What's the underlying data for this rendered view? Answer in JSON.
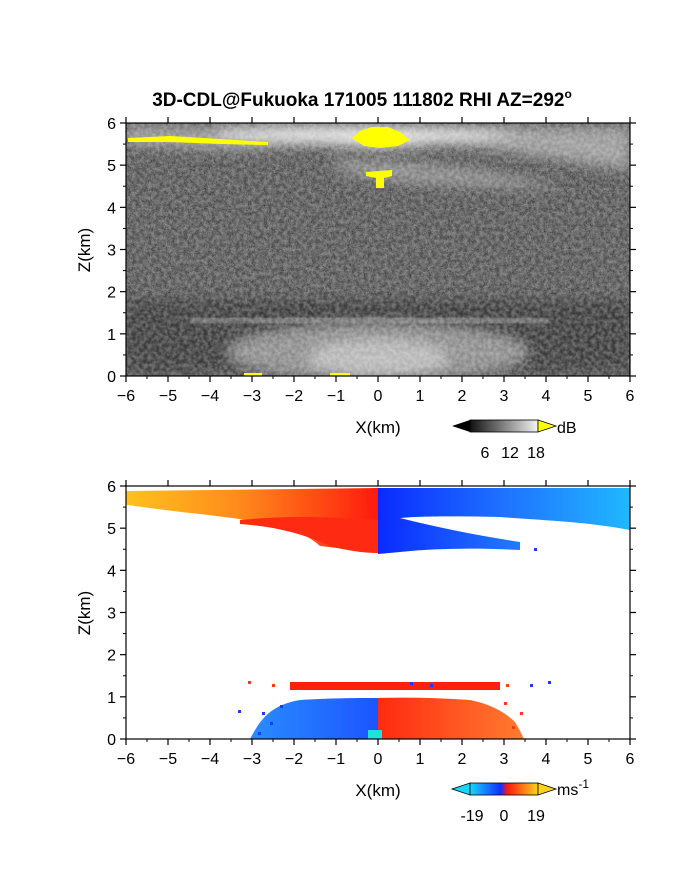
{
  "title_main": "3D-CDL@Fukuoka 171005 111802 RHI AZ=292",
  "title_sup": "o",
  "chart_data": [
    {
      "type": "heatmap",
      "quantity": "reflectivity",
      "xlabel": "X(km)",
      "ylabel": "Z(km)",
      "xlim": [
        -6,
        6
      ],
      "ylim": [
        0,
        6
      ],
      "xticks": [
        -6,
        -5,
        -4,
        -3,
        -2,
        -1,
        0,
        1,
        2,
        3,
        4,
        5,
        6
      ],
      "yticks": [
        0,
        1,
        2,
        3,
        4,
        5,
        6
      ],
      "colorbar": {
        "unit": "dB",
        "ticks": [
          6,
          12,
          18
        ],
        "palette": "grayscale with yellow overflow"
      },
      "features": [
        {
          "name": "cloud layer",
          "x": [
            -6,
            6
          ],
          "z": [
            4.5,
            6.0
          ],
          "dB": 12
        },
        {
          "name": "thin layer",
          "x": [
            -3,
            4
          ],
          "z": [
            1.25,
            1.35
          ],
          "dB": 8
        },
        {
          "name": "boundary layer",
          "x": [
            -3,
            4
          ],
          "z": [
            0,
            1.2
          ],
          "dB": 7
        },
        {
          "name": "strong echo (>18 dB)",
          "x": [
            -0.5,
            0.8
          ],
          "z": [
            5.5,
            5.9
          ],
          "dB": 19
        },
        {
          "name": "strong echo (>18 dB)",
          "x": [
            -6,
            -2.5
          ],
          "z": [
            5.55,
            5.7
          ],
          "dB": 19
        },
        {
          "name": "strong echo (>18 dB)",
          "x": [
            -0.2,
            0.5
          ],
          "z": [
            4.6,
            4.9
          ],
          "dB": 19
        }
      ]
    },
    {
      "type": "heatmap",
      "quantity": "doppler velocity",
      "xlabel": "X(km)",
      "ylabel": "Z(km)",
      "xlim": [
        -6,
        6
      ],
      "ylim": [
        0,
        6
      ],
      "xticks": [
        -6,
        -5,
        -4,
        -3,
        -2,
        -1,
        0,
        1,
        2,
        3,
        4,
        5,
        6
      ],
      "yticks": [
        0,
        1,
        2,
        3,
        4,
        5,
        6
      ],
      "colorbar": {
        "unit": "ms",
        "unit_sup": "-1",
        "ticks": [
          "-19",
          "0",
          "19"
        ],
        "palette": "cyan-blue-red-yellow"
      },
      "features": [
        {
          "name": "upper layer, receding side",
          "x": [
            -6,
            0
          ],
          "z": [
            4.4,
            6.0
          ],
          "velocity": 12
        },
        {
          "name": "upper layer, approaching side",
          "x": [
            0,
            6
          ],
          "z": [
            4.4,
            6.0
          ],
          "velocity": -12
        },
        {
          "name": "low layer, approaching side",
          "x": [
            -3.2,
            0
          ],
          "z": [
            0,
            1.0
          ],
          "velocity": -10
        },
        {
          "name": "low layer, receding side",
          "x": [
            0,
            3.5
          ],
          "z": [
            0,
            1.0
          ],
          "velocity": 8
        },
        {
          "name": "thin layer",
          "x": [
            -2,
            3.5
          ],
          "z": [
            1.2,
            1.35
          ],
          "velocity": 3
        }
      ]
    }
  ]
}
